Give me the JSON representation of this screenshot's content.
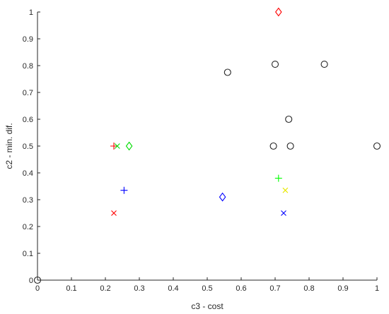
{
  "chart_data": {
    "type": "scatter",
    "title": "",
    "xlabel": "c3 - cost",
    "ylabel": "c2 - min. dif.",
    "xlim": [
      0,
      1
    ],
    "ylim": [
      0,
      1
    ],
    "grid": false,
    "x_ticks": [
      "0",
      "0.1",
      "0.2",
      "0.3",
      "0.4",
      "0.5",
      "0.6",
      "0.7",
      "0.8",
      "0.9",
      "1"
    ],
    "y_ticks": [
      "0",
      "0.1",
      "0.2",
      "0.3",
      "0.4",
      "0.5",
      "0.6",
      "0.7",
      "0.8",
      "0.9",
      "1"
    ],
    "series": [
      {
        "marker": "circle",
        "color": "#262626",
        "points": [
          {
            "x": 0,
            "y": 0
          },
          {
            "x": 0.56,
            "y": 0.775
          },
          {
            "x": 0.7,
            "y": 0.805
          },
          {
            "x": 0.845,
            "y": 0.805
          },
          {
            "x": 0.74,
            "y": 0.6
          },
          {
            "x": 0.695,
            "y": 0.5
          },
          {
            "x": 0.745,
            "y": 0.5
          },
          {
            "x": 1.0,
            "y": 0.5
          }
        ]
      },
      {
        "marker": "diamond",
        "color": "#ff0000",
        "points": [
          {
            "x": 0.71,
            "y": 1.0
          }
        ]
      },
      {
        "marker": "diamond",
        "color": "#00dd00",
        "points": [
          {
            "x": 0.27,
            "y": 0.5
          }
        ]
      },
      {
        "marker": "diamond",
        "color": "#0000ff",
        "points": [
          {
            "x": 0.545,
            "y": 0.31
          }
        ]
      },
      {
        "marker": "plus",
        "color": "#ff0000",
        "points": [
          {
            "x": 0.225,
            "y": 0.5
          }
        ]
      },
      {
        "marker": "cross",
        "color": "#00dd00",
        "points": [
          {
            "x": 0.235,
            "y": 0.5
          }
        ]
      },
      {
        "marker": "plus",
        "color": "#0000ff",
        "points": [
          {
            "x": 0.255,
            "y": 0.335
          }
        ]
      },
      {
        "marker": "cross",
        "color": "#ff0000",
        "points": [
          {
            "x": 0.225,
            "y": 0.25
          }
        ]
      },
      {
        "marker": "plus",
        "color": "#00ff00",
        "points": [
          {
            "x": 0.71,
            "y": 0.38
          }
        ]
      },
      {
        "marker": "cross",
        "color": "#e8e800",
        "points": [
          {
            "x": 0.73,
            "y": 0.335
          }
        ]
      },
      {
        "marker": "cross",
        "color": "#0000ff",
        "points": [
          {
            "x": 0.725,
            "y": 0.25
          }
        ]
      }
    ]
  }
}
